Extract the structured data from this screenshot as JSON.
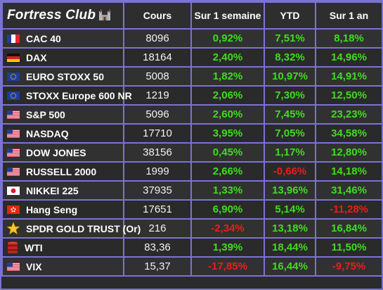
{
  "header": {
    "brand": "Fortress Club",
    "brand_icon": "castle-icon",
    "columns": [
      "Cours",
      "Sur 1 semaine",
      "YTD",
      "Sur 1 an"
    ]
  },
  "colors": {
    "positive": "#3fdc1f",
    "negative": "#ee1c1c",
    "border": "#7b72d6"
  },
  "rows": [
    {
      "icon": "france-flag-icon",
      "name": "CAC 40",
      "cours": "8096",
      "week": "0,92%",
      "ytd": "7,51%",
      "year": "8,18%"
    },
    {
      "icon": "germany-flag-icon",
      "name": "DAX",
      "cours": "18164",
      "week": "2,40%",
      "ytd": "8,32%",
      "year": "14,96%"
    },
    {
      "icon": "eu-flag-icon",
      "name": "EURO STOXX 50",
      "cours": "5008",
      "week": "1,82%",
      "ytd": "10,97%",
      "year": "14,91%"
    },
    {
      "icon": "eu-flag-icon",
      "name": "STOXX Europe 600 NR",
      "cours": "1219",
      "week": "2,06%",
      "ytd": "7,30%",
      "year": "12,50%"
    },
    {
      "icon": "usa-flag-icon",
      "name": "S&P 500",
      "cours": "5096",
      "week": "2,60%",
      "ytd": "7,45%",
      "year": "23,23%"
    },
    {
      "icon": "usa-flag-icon",
      "name": "NASDAQ",
      "cours": "17710",
      "week": "3,95%",
      "ytd": "7,05%",
      "year": "34,58%"
    },
    {
      "icon": "usa-flag-icon",
      "name": "DOW JONES",
      "cours": "38156",
      "week": "0,45%",
      "ytd": "1,17%",
      "year": "12,80%"
    },
    {
      "icon": "usa-flag-icon",
      "name": "RUSSELL 2000",
      "cours": "1999",
      "week": "2,66%",
      "ytd": "-0,66%",
      "year": "14,18%"
    },
    {
      "icon": "japan-flag-icon",
      "name": "NIKKEI 225",
      "cours": "37935",
      "week": "1,33%",
      "ytd": "13,96%",
      "year": "31,46%"
    },
    {
      "icon": "hongkong-flag-icon",
      "name": "Hang Seng",
      "cours": "17651",
      "week": "6,90%",
      "ytd": "5,14%",
      "year": "-11,28%"
    },
    {
      "icon": "star-icon",
      "name": "SPDR GOLD TRUST (Or)",
      "cours": "216",
      "week": "-2,34%",
      "ytd": "13,18%",
      "year": "16,84%"
    },
    {
      "icon": "oil-barrel-icon",
      "name": "WTI",
      "cours": "83,36",
      "week": "1,39%",
      "ytd": "18,44%",
      "year": "11,50%"
    },
    {
      "icon": "usa-flag-icon",
      "name": "VIX",
      "cours": "15,37",
      "week": "-17,85%",
      "ytd": "16,44%",
      "year": "-9,75%"
    }
  ]
}
